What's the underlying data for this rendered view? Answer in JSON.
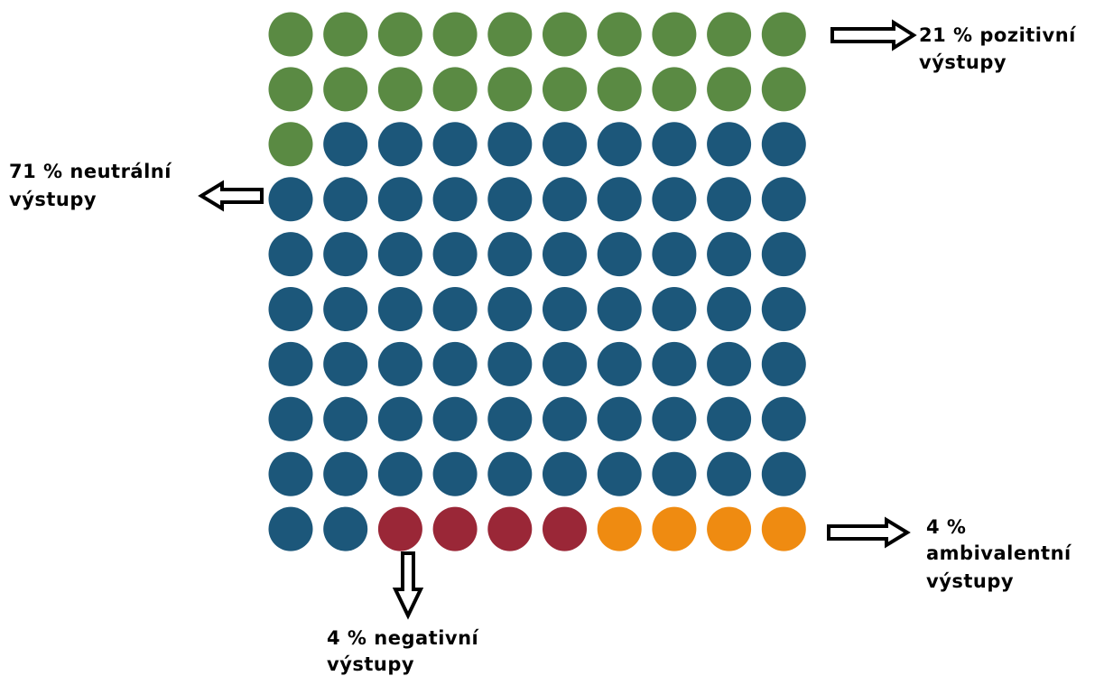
{
  "chart_data": {
    "type": "waffle",
    "total": 100,
    "rows": 10,
    "columns": 10,
    "grid": false,
    "categories": [
      {
        "key": "positive",
        "value": 21,
        "color": "#5a8a43",
        "label_line1": "21 % pozitivní",
        "label_line2": "výstupy"
      },
      {
        "key": "neutral",
        "value": 71,
        "color": "#1c577a",
        "label_line1": "71 % neutrální",
        "label_line2": "výstupy"
      },
      {
        "key": "negative",
        "value": 4,
        "color": "#9a2737",
        "label_line1": "4 % negativní",
        "label_line2": "výstupy"
      },
      {
        "key": "ambivalent",
        "value": 4,
        "color": "#ef8b11",
        "label_line1": "4 %",
        "label_line2": "ambivalentní",
        "label_line3": "výstupy"
      }
    ]
  }
}
